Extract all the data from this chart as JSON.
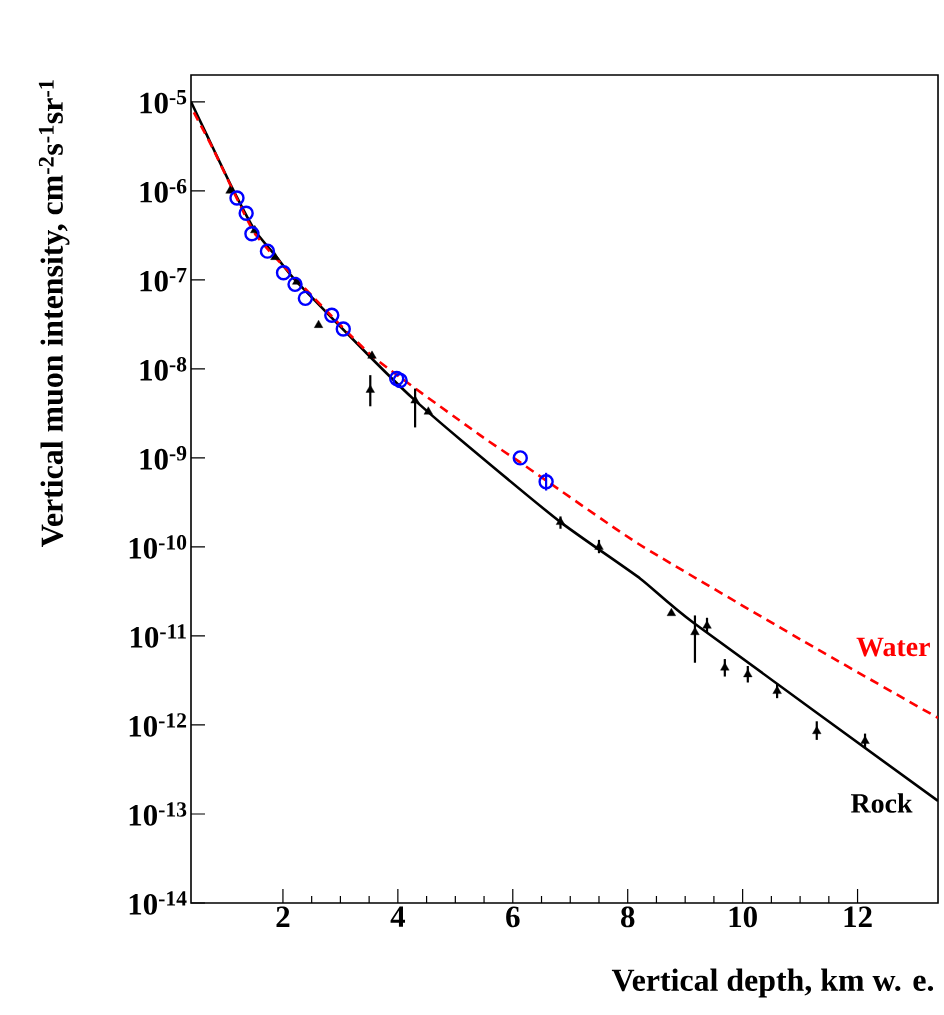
{
  "chart_data": {
    "type": "line",
    "xlabel": "Vertical depth, km w. e.",
    "ylabel": "Vertical muon intensity, cm$^{-2}$s$^{-1}$sr$^{-1}$",
    "log": "y",
    "xlim": [
      0.4,
      13.4
    ],
    "ylim": [
      1e-14,
      2e-05
    ],
    "xticks": [
      2,
      4,
      6,
      8,
      10,
      12
    ],
    "yticks": [
      {
        "value": 1e-05,
        "label": "10$^{-5}$"
      },
      {
        "value": 1e-06,
        "label": "10$^{-6}$"
      },
      {
        "value": 1e-07,
        "label": "10$^{-7}$"
      },
      {
        "value": 1e-08,
        "label": "10$^{-8}$"
      },
      {
        "value": 1e-09,
        "label": "10$^{-9}$"
      },
      {
        "value": 1e-10,
        "label": "10$^{-10}$"
      },
      {
        "value": 1e-11,
        "label": "10$^{-11}$"
      },
      {
        "value": 1e-12,
        "label": "10$^{-12}$"
      },
      {
        "value": 1e-13,
        "label": "10$^{-13}$"
      },
      {
        "value": 1e-14,
        "label": "10$^{-14}$"
      }
    ],
    "series": [
      {
        "name": "Rock",
        "color": "#000000",
        "line_style": "solid",
        "x": [
          0.4,
          0.67,
          1.11,
          1.51,
          1.89,
          2.24,
          3.55,
          4.27,
          5.09,
          6.83,
          8.22,
          9.15,
          13.4
        ],
        "values": [
          1e-05,
          4.3e-06,
          1.1e-06,
          3.6e-07,
          1.8e-07,
          9.5e-08,
          1.3e-08,
          4.6e-09,
          1.6e-09,
          1.9e-10,
          4.4e-11,
          1.4e-11,
          1.4e-13
        ]
      },
      {
        "name": "Water",
        "color": "#ff0000",
        "line_style": "dashed",
        "x": [
          0.45,
          0.78,
          1.5,
          2.24,
          3.55,
          5.43,
          6.13,
          8.17,
          11.01,
          13.4
        ],
        "values": [
          7.6e-06,
          3e-06,
          3.4e-07,
          1e-07,
          1.4e-08,
          1.8e-09,
          8.9e-10,
          1.1e-10,
          9.1e-12,
          1.2e-12
        ]
      },
      {
        "type": "scatter",
        "color": "#000000",
        "marker": "triangle",
        "x": [
          1.08,
          1.51,
          1.86,
          2.24,
          2.62,
          3.55,
          3.52,
          4.3,
          4.53,
          6.83,
          7.5,
          8.76,
          9.17,
          9.38,
          9.69,
          10.09,
          10.6,
          11.29,
          12.13
        ],
        "values": [
          1e-06,
          3.6e-07,
          1.8e-07,
          9.5e-08,
          3.1e-08,
          1.4e-08,
          5.8e-09,
          4.4e-09,
          3.3e-09,
          1.9e-10,
          1e-10,
          1.8e-11,
          1.1e-11,
          1.3e-11,
          4.4e-12,
          3.7e-12,
          2.4e-12,
          8.5e-13,
          6.6e-13
        ],
        "errors": [
          null,
          null,
          null,
          null,
          null,
          null,
          [
            3.8e-09,
            8.5e-09
          ],
          [
            2.2e-09,
            6e-09
          ],
          null,
          [
            1.6e-10,
            2.2e-10
          ],
          [
            8.5e-11,
            1.2e-10
          ],
          null,
          [
            5e-12,
            1.7e-11
          ],
          [
            1.1e-11,
            1.6e-11
          ],
          [
            3.5e-12,
            5.5e-12
          ],
          [
            3e-12,
            4.6e-12
          ],
          [
            2e-12,
            2.9e-12
          ],
          [
            6.8e-13,
            1.1e-12
          ],
          [
            5.5e-13,
            8e-13
          ]
        ]
      },
      {
        "type": "scatter",
        "color": "#0000ff",
        "marker": "circle",
        "x": [
          1.2,
          1.36,
          1.46,
          1.73,
          2.01,
          2.39,
          3.05,
          4.04,
          6.13
        ],
        "values": [
          8.3e-07,
          5.6e-07,
          3.3e-07,
          2.1e-07,
          1.2e-07,
          6.2e-08,
          2.8e-08,
          7.4e-09,
          1e-09
        ]
      },
      {
        "type": "scatter",
        "color": "#0000ff",
        "marker": "circle",
        "x": [
          2.21,
          2.85,
          3.98,
          6.58
        ],
        "values": [
          8.9e-08,
          4e-08,
          7.8e-09,
          5.4e-10
        ],
        "errors": [
          null,
          null,
          null,
          [
            4.3e-10,
            6.8e-10
          ]
        ]
      }
    ]
  }
}
